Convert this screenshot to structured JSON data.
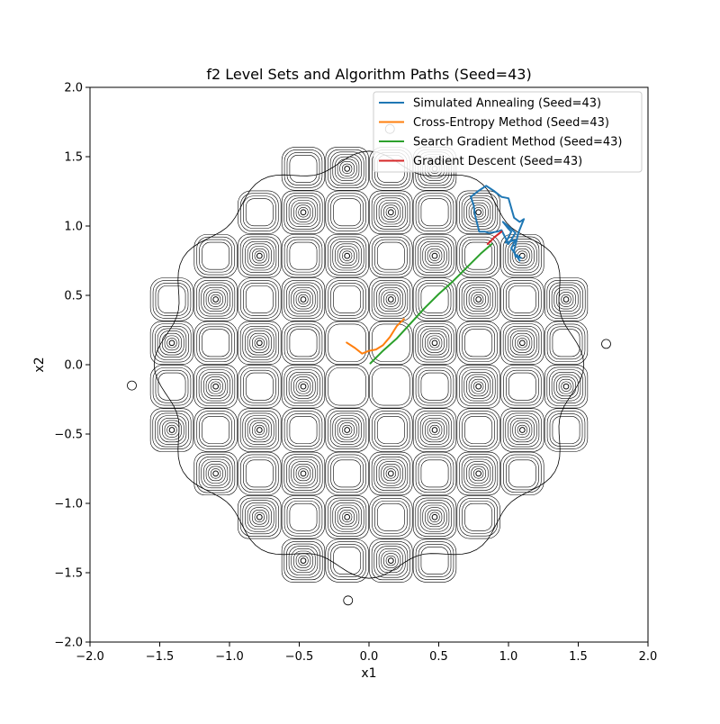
{
  "chart_data": {
    "type": "line",
    "title": "f2 Level Sets and Algorithm Paths (Seed=43)",
    "xlabel": "x1",
    "ylabel": "x2",
    "xlim": [
      -2.0,
      2.0
    ],
    "ylim": [
      -2.0,
      2.0
    ],
    "xticks": [
      -2.0,
      -1.5,
      -1.0,
      -0.5,
      0.0,
      0.5,
      1.0,
      1.5,
      2.0
    ],
    "yticks": [
      -2.0,
      -1.5,
      -1.0,
      -0.5,
      0.0,
      0.5,
      1.0,
      1.5,
      2.0
    ],
    "xtick_labels": [
      "−2.0",
      "−1.5",
      "−1.0",
      "−0.5",
      "0.0",
      "0.5",
      "1.0",
      "1.5",
      "2.0"
    ],
    "ytick_labels": [
      "−2.0",
      "−1.5",
      "−1.0",
      "−0.5",
      "0.0",
      "0.5",
      "1.0",
      "1.5",
      "2.0"
    ],
    "grid": false,
    "legend_position": "top-right",
    "contour": {
      "description_source": "level sets of f2 drawn as thin black contour lines",
      "color": "#000000",
      "cell_spacing": 0.314,
      "support_radius": 1.5,
      "outer_minima": [
        [
          -1.7,
          -0.15
        ],
        [
          1.7,
          0.15
        ],
        [
          0.15,
          1.7
        ],
        [
          -0.15,
          -1.7
        ]
      ]
    },
    "series": [
      {
        "name": "Simulated Annealing (Seed=43)",
        "color": "#1f77b4",
        "x": [
          1.08,
          1.02,
          1.05,
          0.98,
          1.02,
          1.0,
          0.96,
          1.02,
          1.05,
          1.0,
          0.95,
          0.92,
          0.86,
          0.83,
          0.79,
          0.76,
          0.75,
          0.73,
          0.78,
          0.84,
          0.9,
          0.95,
          1.0,
          1.04,
          1.08,
          1.11,
          1.07,
          1.04,
          1.05,
          1.09,
          1.06
        ],
        "y": [
          0.75,
          0.84,
          0.9,
          0.88,
          0.96,
          0.98,
          1.03,
          0.98,
          0.95,
          0.87,
          0.97,
          0.96,
          0.95,
          0.96,
          0.96,
          1.08,
          1.15,
          1.21,
          1.25,
          1.29,
          1.25,
          1.21,
          1.2,
          1.06,
          1.03,
          1.05,
          0.95,
          0.82,
          0.78,
          0.77,
          0.79
        ]
      },
      {
        "name": "Cross-Entropy Method (Seed=43)",
        "color": "#ff7f0e",
        "x": [
          -0.16,
          -0.1,
          -0.05,
          0.0,
          0.05,
          0.1,
          0.15,
          0.2,
          0.25
        ],
        "y": [
          0.16,
          0.12,
          0.08,
          0.1,
          0.11,
          0.14,
          0.2,
          0.28,
          0.33
        ]
      },
      {
        "name": "Search Gradient Method (Seed=43)",
        "color": "#2ca02c",
        "x": [
          0.01,
          0.1,
          0.2,
          0.3,
          0.4,
          0.5,
          0.6,
          0.7,
          0.8,
          0.88
        ],
        "y": [
          0.01,
          0.1,
          0.19,
          0.3,
          0.41,
          0.51,
          0.6,
          0.7,
          0.8,
          0.87
        ]
      },
      {
        "name": "Gradient Descent (Seed=43)",
        "color": "#d62728",
        "x": [
          0.85,
          0.9,
          0.95
        ],
        "y": [
          0.87,
          0.92,
          0.96
        ]
      }
    ]
  }
}
